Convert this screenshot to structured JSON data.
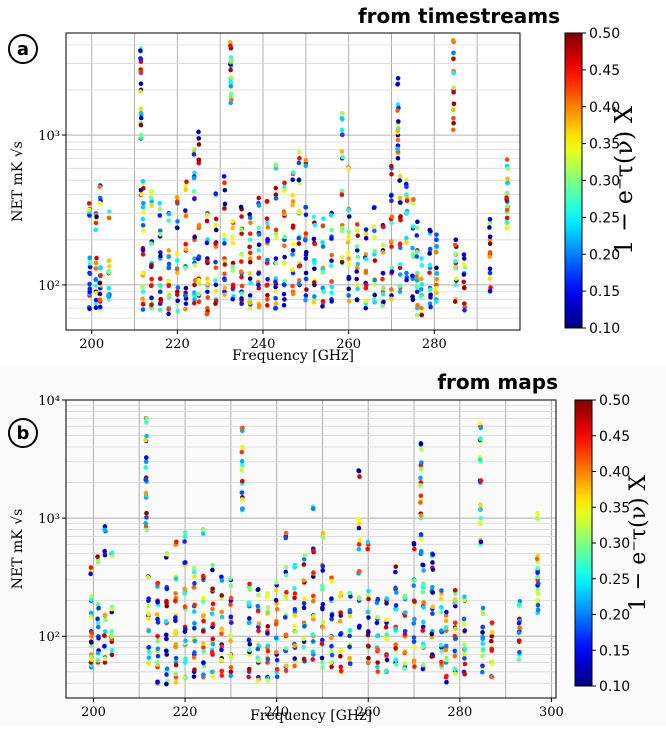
{
  "chart_data": [
    {
      "type": "scatter",
      "panel_label": "a",
      "title": "from timestreams",
      "xlabel": "Frequency [GHz]",
      "ylabel": "NET mK √s",
      "xlim": [
        194,
        300
      ],
      "ylim": [
        50,
        4800
      ],
      "yscale": "log",
      "xticks": [
        200,
        220,
        240,
        260,
        280
      ],
      "yticks": [
        {
          "value": 100,
          "label": "10²"
        },
        {
          "value": 1000,
          "label": "10³"
        }
      ],
      "grid": true,
      "colorbar": {
        "label": "1 − e⁻τ(ν) X",
        "colormap": "jet",
        "range": [
          0.1,
          0.5
        ],
        "ticks": [
          "0.10",
          "0.15",
          "0.20",
          "0.25",
          "0.30",
          "0.35",
          "0.40",
          "0.45",
          "0.50"
        ]
      },
      "series": [
        {
          "x": 199.5,
          "y": [
            70,
            85,
            100,
            120,
            150,
            290,
            320
          ]
        },
        {
          "x": 201,
          "y": [
            75,
            90,
            110,
            140,
            260,
            300
          ]
        },
        {
          "x": 202,
          "y": [
            70,
            80,
            95,
            115,
            130,
            380,
            460
          ]
        },
        {
          "x": 204,
          "y": [
            80,
            95,
            120,
            145,
            280
          ]
        },
        {
          "x": 211.5,
          "y": [
            400,
            950,
            1200,
            1500,
            2000,
            2600,
            3200,
            3800
          ]
        },
        {
          "x": 212,
          "y": [
            75,
            90,
            120,
            160,
            250,
            330,
            480
          ]
        },
        {
          "x": 214,
          "y": [
            70,
            80,
            100,
            140,
            190,
            360,
            420
          ]
        },
        {
          "x": 216,
          "y": [
            75,
            90,
            110,
            150,
            230,
            320
          ]
        },
        {
          "x": 218,
          "y": [
            70,
            85,
            100,
            130,
            170,
            300
          ]
        },
        {
          "x": 220,
          "y": [
            75,
            90,
            120,
            160,
            240,
            350
          ]
        },
        {
          "x": 222,
          "y": [
            75,
            95,
            130,
            170,
            300,
            460
          ]
        },
        {
          "x": 224,
          "y": [
            80,
            100,
            140,
            200,
            380,
            560,
            800
          ]
        },
        {
          "x": 225,
          "y": [
            85,
            110,
            150,
            240,
            650,
            950
          ]
        },
        {
          "x": 227,
          "y": [
            70,
            90,
            110,
            150,
            200,
            300
          ]
        },
        {
          "x": 229,
          "y": [
            80,
            100,
            130,
            180,
            250,
            400
          ]
        },
        {
          "x": 231,
          "y": [
            90,
            110,
            150,
            200,
            330,
            480
          ]
        },
        {
          "x": 232.5,
          "y": [
            1800,
            2100,
            2400,
            2900,
            3300,
            3800
          ]
        },
        {
          "x": 233,
          "y": [
            80,
            100,
            140,
            190,
            260
          ]
        },
        {
          "x": 235,
          "y": [
            75,
            90,
            120,
            160,
            220,
            320
          ]
        },
        {
          "x": 237,
          "y": [
            70,
            85,
            110,
            150,
            200,
            280
          ]
        },
        {
          "x": 239,
          "y": [
            75,
            95,
            120,
            170,
            240,
            380
          ]
        },
        {
          "x": 241,
          "y": [
            80,
            100,
            140,
            190,
            260,
            360
          ]
        },
        {
          "x": 243,
          "y": [
            70,
            90,
            110,
            150,
            220,
            400,
            600
          ]
        },
        {
          "x": 245,
          "y": [
            80,
            100,
            140,
            200,
            290,
            450
          ]
        },
        {
          "x": 247,
          "y": [
            90,
            120,
            170,
            240,
            360,
            550
          ]
        },
        {
          "x": 248.5,
          "y": [
            100,
            140,
            210,
            310,
            480,
            700
          ]
        },
        {
          "x": 250,
          "y": [
            85,
            110,
            150,
            220,
            330,
            650
          ]
        },
        {
          "x": 252,
          "y": [
            80,
            100,
            140,
            190,
            260
          ]
        },
        {
          "x": 254,
          "y": [
            75,
            95,
            130,
            180,
            250
          ]
        },
        {
          "x": 256,
          "y": [
            80,
            105,
            145,
            210,
            300
          ]
        },
        {
          "x": 258.5,
          "y": [
            140,
            250,
            420,
            700,
            1000,
            1400
          ]
        },
        {
          "x": 260,
          "y": [
            85,
            110,
            150,
            210,
            320,
            600
          ]
        },
        {
          "x": 262,
          "y": [
            80,
            100,
            130,
            170,
            230
          ]
        },
        {
          "x": 264,
          "y": [
            75,
            95,
            120,
            160,
            220
          ]
        },
        {
          "x": 266,
          "y": [
            80,
            110,
            160,
            230,
            330
          ]
        },
        {
          "x": 268,
          "y": [
            75,
            90,
            120,
            170,
            250
          ]
        },
        {
          "x": 270,
          "y": [
            85,
            120,
            180,
            260,
            400,
            600
          ]
        },
        {
          "x": 271.5,
          "y": [
            700,
            850,
            1000,
            1200,
            1600,
            2200
          ]
        },
        {
          "x": 272,
          "y": [
            90,
            130,
            190,
            280,
            380,
            500
          ]
        },
        {
          "x": 273.5,
          "y": [
            120,
            200,
            300,
            400,
            500
          ]
        },
        {
          "x": 275,
          "y": [
            80,
            110,
            160,
            240,
            350
          ]
        },
        {
          "x": 276,
          "y": [
            70,
            90,
            120,
            170,
            240
          ]
        },
        {
          "x": 277,
          "y": [
            70,
            85,
            110,
            150
          ]
        },
        {
          "x": 279,
          "y": [
            75,
            95,
            130,
            170,
            220
          ]
        },
        {
          "x": 280.5,
          "y": [
            80,
            100,
            130,
            165,
            200
          ]
        },
        {
          "x": 284.5,
          "y": [
            1200,
            1600,
            2000,
            2600,
            3300,
            4200
          ]
        },
        {
          "x": 285,
          "y": [
            80,
            100,
            130,
            160,
            200
          ]
        },
        {
          "x": 287,
          "y": [
            75,
            95,
            120,
            150
          ]
        },
        {
          "x": 293,
          "y": [
            90,
            120,
            160,
            200,
            260
          ]
        },
        {
          "x": 297,
          "y": [
            240,
            280,
            320,
            360,
            410,
            480,
            620
          ]
        }
      ]
    },
    {
      "type": "scatter",
      "panel_label": "b",
      "title": "from maps",
      "xlabel": "Frequency [GHz]",
      "ylabel": "NET mK √s",
      "xlim": [
        194,
        301
      ],
      "ylim": [
        30,
        10000
      ],
      "yscale": "log",
      "xticks": [
        200,
        220,
        240,
        260,
        280,
        300
      ],
      "yticks": [
        {
          "value": 100,
          "label": "10²"
        },
        {
          "value": 1000,
          "label": "10³"
        },
        {
          "value": 10000,
          "label": "10⁴"
        }
      ],
      "grid": true,
      "colorbar": {
        "label": "1 − e⁻τ(ν) X",
        "colormap": "jet",
        "range": [
          0.1,
          0.5
        ],
        "ticks": [
          "0.10",
          "0.15",
          "0.20",
          "0.25",
          "0.30",
          "0.35",
          "0.40",
          "0.45",
          "0.50"
        ]
      },
      "series": [
        {
          "x": 199.5,
          "y": [
            55,
            70,
            90,
            110,
            150,
            200,
            350
          ]
        },
        {
          "x": 201,
          "y": [
            60,
            75,
            100,
            130,
            170,
            450
          ]
        },
        {
          "x": 202.5,
          "y": [
            60,
            80,
            100,
            150,
            500,
            850
          ]
        },
        {
          "x": 204,
          "y": [
            70,
            90,
            110,
            160,
            500
          ]
        },
        {
          "x": 211.5,
          "y": [
            850,
            1100,
            1500,
            2200,
            3000,
            4500,
            7000
          ]
        },
        {
          "x": 212,
          "y": [
            60,
            80,
            110,
            150,
            200,
            320
          ]
        },
        {
          "x": 214,
          "y": [
            40,
            55,
            75,
            100,
            140,
            200,
            280
          ]
        },
        {
          "x": 216,
          "y": [
            40,
            50,
            70,
            95,
            130,
            180,
            260,
            500
          ]
        },
        {
          "x": 218,
          "y": [
            45,
            60,
            80,
            110,
            150,
            210,
            320,
            600
          ]
        },
        {
          "x": 220,
          "y": [
            45,
            60,
            85,
            120,
            170,
            240,
            400,
            700
          ]
        },
        {
          "x": 222,
          "y": [
            50,
            70,
            95,
            130,
            180,
            260,
            350
          ]
        },
        {
          "x": 224,
          "y": [
            45,
            60,
            80,
            110,
            150,
            210,
            300,
            800
          ]
        },
        {
          "x": 226,
          "y": [
            50,
            70,
            90,
            120,
            170,
            240,
            400
          ]
        },
        {
          "x": 228,
          "y": [
            50,
            65,
            85,
            115,
            160,
            220,
            300
          ]
        },
        {
          "x": 230,
          "y": [
            50,
            70,
            100,
            140,
            200,
            300
          ]
        },
        {
          "x": 232.5,
          "y": [
            1200,
            1500,
            2000,
            2800,
            4000,
            5800
          ]
        },
        {
          "x": 234,
          "y": [
            50,
            70,
            95,
            130,
            180,
            260
          ]
        },
        {
          "x": 236,
          "y": [
            45,
            60,
            85,
            120,
            170,
            250
          ]
        },
        {
          "x": 238,
          "y": [
            45,
            60,
            80,
            110,
            160,
            230
          ]
        },
        {
          "x": 240,
          "y": [
            50,
            70,
            95,
            130,
            190,
            270
          ]
        },
        {
          "x": 242,
          "y": [
            55,
            75,
            100,
            150,
            220,
            350,
            700
          ]
        },
        {
          "x": 244,
          "y": [
            60,
            80,
            110,
            160,
            230,
            400
          ]
        },
        {
          "x": 246,
          "y": [
            65,
            90,
            130,
            190,
            280,
            450
          ]
        },
        {
          "x": 248,
          "y": [
            70,
            100,
            140,
            210,
            320,
            550,
            1200
          ]
        },
        {
          "x": 250,
          "y": [
            60,
            85,
            120,
            170,
            250,
            400,
            700
          ]
        },
        {
          "x": 252,
          "y": [
            55,
            75,
            100,
            140,
            200,
            300
          ]
        },
        {
          "x": 254,
          "y": [
            55,
            75,
            105,
            150,
            220
          ]
        },
        {
          "x": 256,
          "y": [
            60,
            80,
            110,
            160,
            230
          ]
        },
        {
          "x": 258,
          "y": [
            120,
            200,
            350,
            600,
            900,
            2500
          ]
        },
        {
          "x": 260,
          "y": [
            60,
            80,
            110,
            150,
            220,
            600
          ]
        },
        {
          "x": 262,
          "y": [
            55,
            75,
            100,
            140,
            200
          ]
        },
        {
          "x": 264,
          "y": [
            50,
            70,
            95,
            130,
            190
          ]
        },
        {
          "x": 266,
          "y": [
            60,
            85,
            120,
            170,
            250,
            350
          ]
        },
        {
          "x": 268,
          "y": [
            55,
            75,
            100,
            150,
            220
          ]
        },
        {
          "x": 270,
          "y": [
            60,
            90,
            130,
            200,
            300,
            600
          ]
        },
        {
          "x": 271.5,
          "y": [
            500,
            700,
            1000,
            1400,
            2000,
            2800,
            4200
          ]
        },
        {
          "x": 272,
          "y": [
            55,
            80,
            120,
            180,
            260,
            400
          ]
        },
        {
          "x": 274,
          "y": [
            70,
            110,
            170,
            260,
            380,
            500
          ]
        },
        {
          "x": 276,
          "y": [
            55,
            80,
            110,
            160,
            230
          ]
        },
        {
          "x": 277,
          "y": [
            45,
            60,
            80,
            110,
            150
          ]
        },
        {
          "x": 279,
          "y": [
            50,
            70,
            95,
            130,
            180,
            230
          ]
        },
        {
          "x": 281,
          "y": [
            50,
            65,
            85,
            110,
            140,
            200
          ]
        },
        {
          "x": 284.5,
          "y": [
            600,
            900,
            1300,
            2000,
            3000,
            4500,
            6000
          ]
        },
        {
          "x": 285,
          "y": [
            55,
            75,
            95,
            120,
            160
          ]
        },
        {
          "x": 287,
          "y": [
            45,
            60,
            80,
            100,
            130
          ]
        },
        {
          "x": 293,
          "y": [
            70,
            90,
            110,
            140,
            180
          ]
        },
        {
          "x": 297,
          "y": [
            170,
            200,
            250,
            300,
            360,
            480,
            1100
          ]
        }
      ]
    }
  ]
}
